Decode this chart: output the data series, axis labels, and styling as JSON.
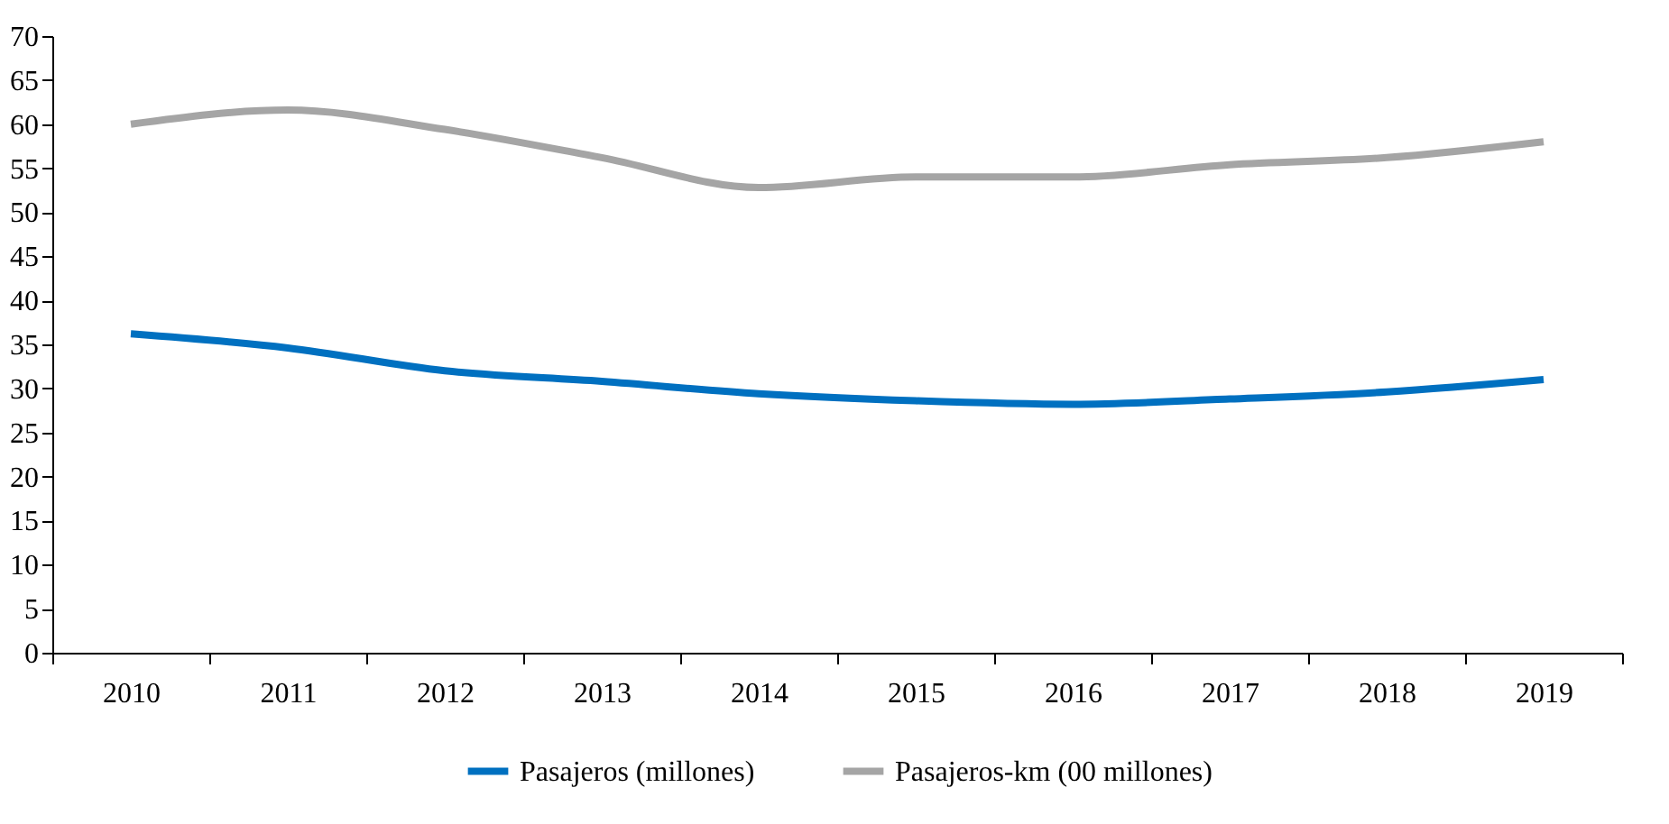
{
  "chart_data": {
    "type": "line",
    "categories": [
      "2010",
      "2011",
      "2012",
      "2013",
      "2014",
      "2015",
      "2016",
      "2017",
      "2018",
      "2019"
    ],
    "series": [
      {
        "name": "Pasajeros (millones)",
        "color": "#0070c0",
        "values": [
          36.2,
          34.6,
          32,
          30.8,
          29.4,
          28.6,
          28.2,
          28.8,
          29.6,
          31
        ]
      },
      {
        "name": "Pasajeros-km (00 millones)",
        "color": "#a5a5a5",
        "values": [
          60,
          61.6,
          59.4,
          56.2,
          52.8,
          54,
          54,
          55.4,
          56.2,
          58
        ]
      }
    ],
    "ylim": [
      0,
      70
    ],
    "yticks": [
      0,
      5,
      10,
      15,
      20,
      25,
      30,
      35,
      40,
      45,
      50,
      55,
      60,
      65,
      70
    ],
    "grid": false,
    "legend": "bottom",
    "marker": "none",
    "line_style": "solid"
  }
}
